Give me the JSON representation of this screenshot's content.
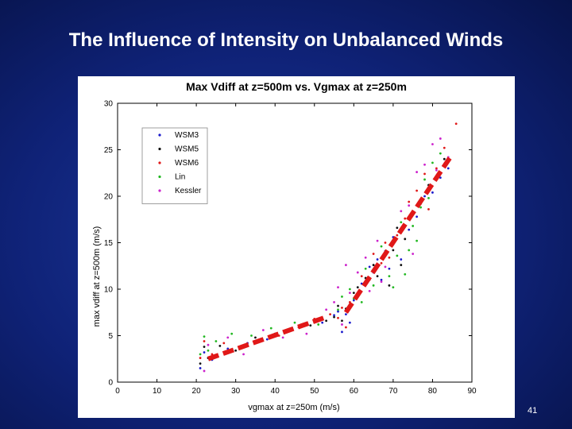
{
  "slide": {
    "title": "The Influence of Intensity on Unbalanced Winds",
    "page_number": "41"
  },
  "chart_data": {
    "type": "scatter",
    "title": "Max Vdiff at z=500m vs. Vgmax at z=250m",
    "xlabel": "vgmax at z=250m (m/s)",
    "ylabel": "max vdiff at z=500m (m/s)",
    "xlim": [
      0,
      90
    ],
    "ylim": [
      0,
      30
    ],
    "xticks": [
      0,
      10,
      20,
      30,
      40,
      50,
      60,
      70,
      80,
      90
    ],
    "yticks": [
      0,
      5,
      10,
      15,
      20,
      25,
      30
    ],
    "grid": false,
    "legend_position": "upper-left",
    "series": [
      {
        "name": "WSM3",
        "color": "#1a1acc",
        "points": [
          [
            21,
            1.5
          ],
          [
            22,
            3.2
          ],
          [
            24,
            2.4
          ],
          [
            28,
            3.6
          ],
          [
            33,
            4.2
          ],
          [
            38,
            4.6
          ],
          [
            43,
            5.4
          ],
          [
            47,
            6.0
          ],
          [
            52,
            6.4
          ],
          [
            55,
            7.2
          ],
          [
            56,
            7.6
          ],
          [
            57,
            5.4
          ],
          [
            58,
            7.3
          ],
          [
            59,
            6.4
          ],
          [
            60,
            8.8
          ],
          [
            62,
            10.6
          ],
          [
            64,
            12.4
          ],
          [
            65,
            11.8
          ],
          [
            66,
            13.2
          ],
          [
            67,
            11.0
          ],
          [
            68,
            14.1
          ],
          [
            69,
            12.2
          ],
          [
            70,
            15.6
          ],
          [
            72,
            13.2
          ],
          [
            74,
            16.4
          ],
          [
            76,
            17.8
          ],
          [
            78,
            20.0
          ],
          [
            80,
            20.4
          ],
          [
            82,
            22.0
          ],
          [
            84,
            23.0
          ]
        ]
      },
      {
        "name": "WSM5",
        "color": "#111111",
        "points": [
          [
            21,
            2.0
          ],
          [
            22,
            3.8
          ],
          [
            23,
            2.6
          ],
          [
            26,
            3.9
          ],
          [
            30,
            3.4
          ],
          [
            35,
            4.8
          ],
          [
            40,
            5.2
          ],
          [
            44,
            5.6
          ],
          [
            49,
            6.1
          ],
          [
            53,
            6.6
          ],
          [
            55,
            7.0
          ],
          [
            56,
            8.2
          ],
          [
            57,
            6.6
          ],
          [
            58,
            7.9
          ],
          [
            60,
            9.6
          ],
          [
            61,
            10.2
          ],
          [
            63,
            11.2
          ],
          [
            65,
            12.6
          ],
          [
            66,
            11.4
          ],
          [
            68,
            13.6
          ],
          [
            69,
            10.4
          ],
          [
            70,
            14.2
          ],
          [
            71,
            16.6
          ],
          [
            72,
            12.6
          ],
          [
            73,
            15.4
          ],
          [
            75,
            18.0
          ],
          [
            77,
            19.2
          ],
          [
            79,
            21.2
          ],
          [
            81,
            21.8
          ],
          [
            83,
            24.0
          ]
        ]
      },
      {
        "name": "WSM6",
        "color": "#e01818",
        "points": [
          [
            21,
            2.6
          ],
          [
            22,
            4.4
          ],
          [
            24,
            3.0
          ],
          [
            27,
            4.2
          ],
          [
            31,
            3.7
          ],
          [
            36,
            4.4
          ],
          [
            41,
            5.0
          ],
          [
            46,
            5.9
          ],
          [
            50,
            6.8
          ],
          [
            54,
            7.3
          ],
          [
            56,
            6.9
          ],
          [
            57,
            8.0
          ],
          [
            58,
            5.9
          ],
          [
            59,
            8.6
          ],
          [
            61,
            9.4
          ],
          [
            62,
            11.4
          ],
          [
            64,
            11.0
          ],
          [
            65,
            13.8
          ],
          [
            67,
            12.8
          ],
          [
            68,
            15.0
          ],
          [
            69,
            13.4
          ],
          [
            71,
            15.8
          ],
          [
            73,
            17.6
          ],
          [
            74,
            19.4
          ],
          [
            76,
            20.6
          ],
          [
            78,
            22.4
          ],
          [
            79,
            18.6
          ],
          [
            81,
            23.0
          ],
          [
            83,
            25.2
          ],
          [
            86,
            27.8
          ]
        ]
      },
      {
        "name": "Lin",
        "color": "#22b822",
        "points": [
          [
            21,
            3.0
          ],
          [
            22,
            4.9
          ],
          [
            23,
            3.4
          ],
          [
            25,
            4.4
          ],
          [
            29,
            5.2
          ],
          [
            34,
            5.0
          ],
          [
            39,
            5.8
          ],
          [
            45,
            6.4
          ],
          [
            51,
            6.2
          ],
          [
            56,
            7.8
          ],
          [
            57,
            9.2
          ],
          [
            59,
            10.0
          ],
          [
            60,
            9.0
          ],
          [
            62,
            8.6
          ],
          [
            63,
            12.2
          ],
          [
            65,
            10.4
          ],
          [
            67,
            14.6
          ],
          [
            69,
            11.4
          ],
          [
            70,
            10.2
          ],
          [
            71,
            13.6
          ],
          [
            72,
            17.2
          ],
          [
            73,
            11.6
          ],
          [
            74,
            14.2
          ],
          [
            75,
            16.8
          ],
          [
            76,
            15.2
          ],
          [
            77,
            18.8
          ],
          [
            78,
            21.8
          ],
          [
            79,
            19.8
          ],
          [
            80,
            23.6
          ],
          [
            82,
            24.6
          ]
        ]
      },
      {
        "name": "Kessler",
        "color": "#cc22cc",
        "points": [
          [
            22,
            1.2
          ],
          [
            23,
            4.0
          ],
          [
            25,
            2.8
          ],
          [
            28,
            4.8
          ],
          [
            32,
            3.0
          ],
          [
            37,
            5.6
          ],
          [
            42,
            4.8
          ],
          [
            48,
            5.2
          ],
          [
            53,
            7.8
          ],
          [
            55,
            8.6
          ],
          [
            56,
            10.2
          ],
          [
            57,
            6.2
          ],
          [
            58,
            12.6
          ],
          [
            59,
            9.6
          ],
          [
            61,
            11.8
          ],
          [
            63,
            13.4
          ],
          [
            64,
            9.8
          ],
          [
            66,
            15.2
          ],
          [
            67,
            10.8
          ],
          [
            68,
            12.4
          ],
          [
            70,
            14.8
          ],
          [
            72,
            18.4
          ],
          [
            74,
            19.0
          ],
          [
            75,
            13.8
          ],
          [
            76,
            22.6
          ],
          [
            78,
            23.4
          ],
          [
            80,
            25.6
          ],
          [
            81,
            22.8
          ],
          [
            82,
            26.2
          ],
          [
            84,
            24.2
          ]
        ]
      }
    ],
    "fit_lines": [
      {
        "color": "#e01818",
        "points": [
          [
            23,
            2.5
          ],
          [
            53,
            7.0
          ]
        ]
      },
      {
        "color": "#e01818",
        "points": [
          [
            58,
            7.5
          ],
          [
            85,
            24.5
          ]
        ]
      }
    ]
  }
}
